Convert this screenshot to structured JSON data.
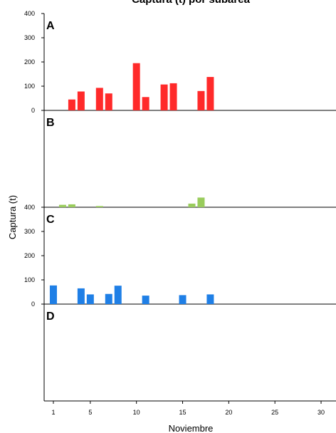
{
  "chart_data": {
    "type": "bar",
    "title": "Captura (t) por subárea",
    "xlabel": "Noviembre",
    "ylabel": "Captura (t)",
    "xlim": [
      0,
      31
    ],
    "x_ticks": [
      1,
      5,
      10,
      15,
      20,
      25,
      30
    ],
    "ylim": [
      0,
      400
    ],
    "y_ticks": [
      0,
      100,
      200,
      300,
      400
    ],
    "grid": false,
    "panels": [
      {
        "label": "A",
        "color": "#ff2a2a",
        "y_tick_labels": [
          "0",
          "100",
          "200",
          "300",
          "400"
        ],
        "x": [
          3,
          4,
          6,
          7,
          10,
          11,
          13,
          14,
          17,
          18
        ],
        "values": [
          45,
          78,
          93,
          70,
          195,
          55,
          107,
          112,
          80,
          138
        ]
      },
      {
        "label": "B",
        "color": "#99cc5c",
        "y_tick_labels": [],
        "x": [
          2,
          3,
          6,
          16,
          17
        ],
        "values": [
          10,
          12,
          5,
          15,
          40
        ]
      },
      {
        "label": "C",
        "color": "#1f7fe6",
        "y_tick_labels": [
          "0",
          "100",
          "200",
          "300",
          "400"
        ],
        "x": [
          1,
          4,
          5,
          7,
          8,
          11,
          15,
          18
        ],
        "values": [
          77,
          65,
          40,
          42,
          76,
          35,
          37,
          40
        ]
      },
      {
        "label": "D",
        "color": "#888888",
        "y_tick_labels": [],
        "x": [],
        "values": []
      }
    ]
  }
}
